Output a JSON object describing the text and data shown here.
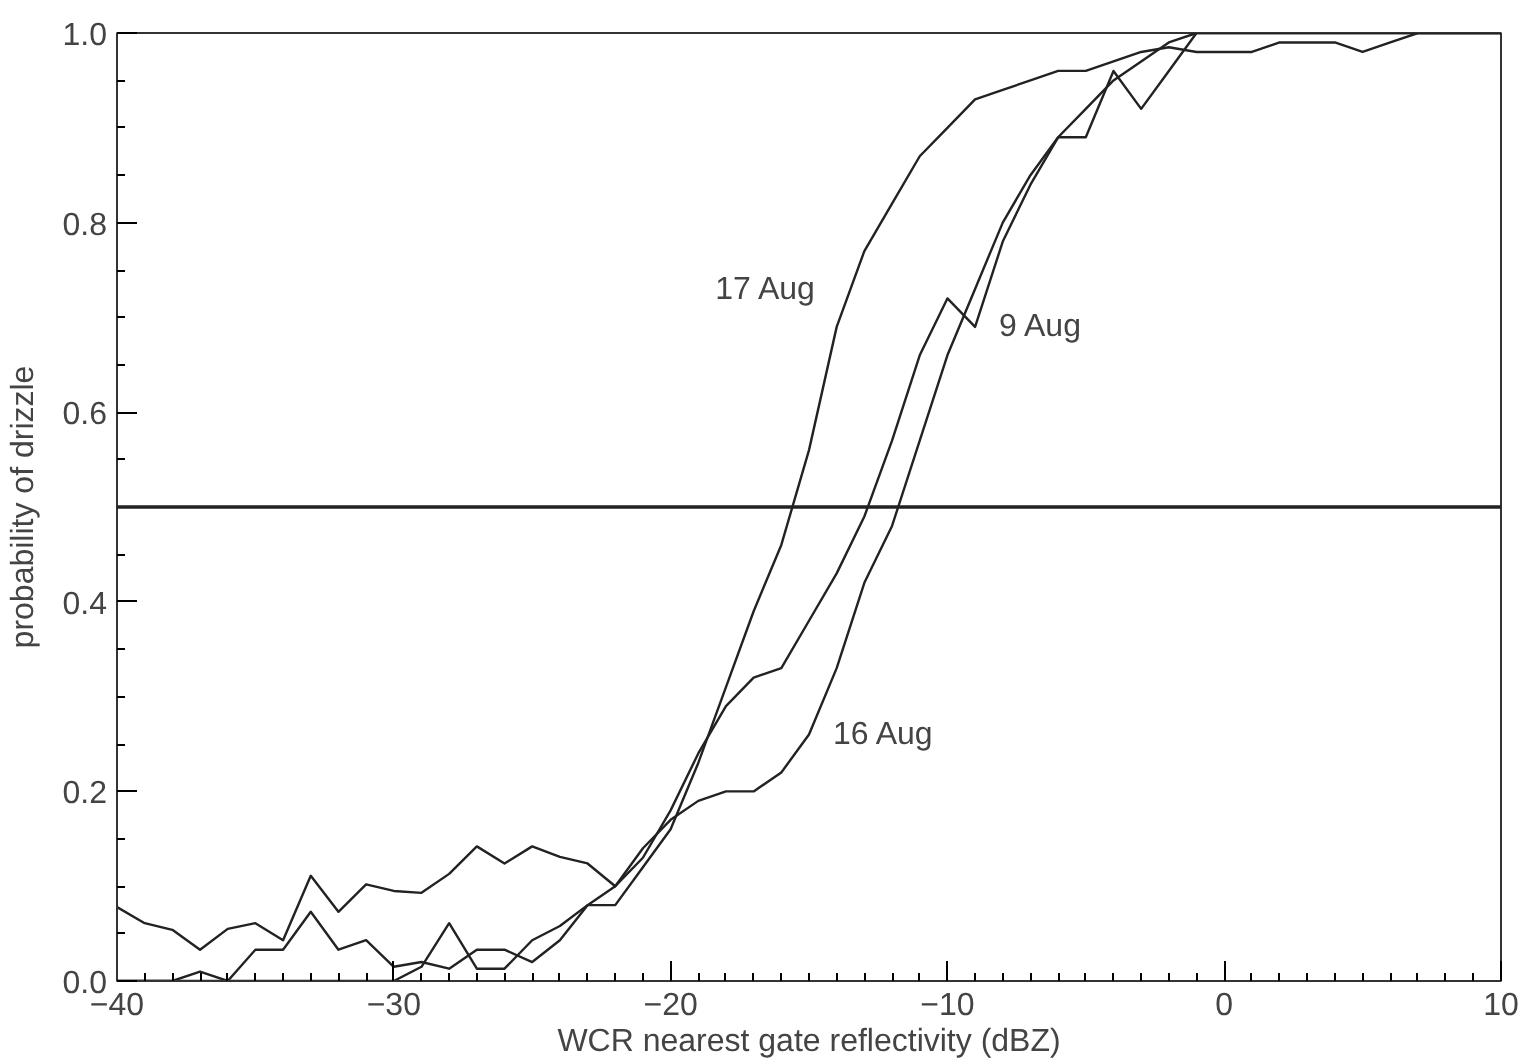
{
  "chart_data": {
    "type": "line",
    "xlabel": "WCR nearest gate reflectivity (dBZ)",
    "ylabel": "probability of drizzle",
    "xlim": [
      -40,
      10
    ],
    "xticks": [
      -40,
      -30,
      -20,
      -10,
      0,
      10
    ],
    "ylim": [
      0,
      1
    ],
    "yticks": [
      {
        "value": 0,
        "label": "0.0"
      },
      {
        "value": 0.2,
        "label": "0.2"
      },
      {
        "value": 0.4,
        "label": "0.4"
      },
      {
        "value": 0.6,
        "label": "0.6"
      },
      {
        "value": 0.8,
        "label": "0.8"
      },
      {
        "value": 1,
        "label": "1.0"
      }
    ],
    "x": [
      -40,
      -39,
      -38,
      -37,
      -36,
      -35,
      -34,
      -33,
      -32,
      -31,
      -30,
      -29,
      -28,
      -27,
      -26,
      -25,
      -24,
      -23,
      -22,
      -21,
      -20,
      -19,
      -18,
      -17,
      -16,
      -15,
      -14,
      -13,
      -12,
      -11,
      -10,
      -9,
      -8,
      -7,
      -6,
      -5,
      -4,
      -3,
      -2,
      -1,
      0,
      1,
      2,
      3,
      4,
      5,
      6,
      7,
      8,
      9,
      10
    ],
    "grid": false,
    "line_style": "solid",
    "series": [
      {
        "color": "#222222",
        "values": [
          0,
          0,
          0,
          0,
          0,
          0,
          0,
          0,
          0,
          0,
          0,
          0.015,
          0.061,
          0.013,
          0.013,
          0.043,
          0.058,
          0.08,
          0.08,
          0.12,
          0.16,
          0.23,
          0.31,
          0.39,
          0.46,
          0.56,
          0.69,
          0.77,
          0.82,
          0.87,
          0.9,
          0.93,
          0.94,
          0.95,
          0.96,
          0.96,
          0.97,
          0.98,
          0.985,
          0.98,
          0.98,
          0.98,
          0.99,
          0.99,
          0.99,
          0.98,
          0.99,
          1,
          1,
          1,
          1
        ]
      },
      {
        "color": "#222222",
        "values": [
          0,
          0,
          0,
          0.01,
          0,
          0.033,
          0.033,
          0.073,
          0.033,
          0.043,
          0.015,
          0.02,
          0.013,
          0.033,
          0.033,
          0.02,
          0.043,
          0.08,
          0.1,
          0.13,
          0.18,
          0.24,
          0.29,
          0.32,
          0.33,
          0.38,
          0.43,
          0.49,
          0.57,
          0.66,
          0.72,
          0.69,
          0.78,
          0.84,
          0.89,
          0.92,
          0.95,
          0.97,
          0.99,
          1,
          1,
          1,
          1,
          1,
          1,
          1,
          1,
          1,
          1,
          1,
          1
        ]
      },
      {
        "color": "#222222",
        "values": [
          0.078,
          0.061,
          0.054,
          0.033,
          0.055,
          0.061,
          0.043,
          0.111,
          0.073,
          0.102,
          0.095,
          0.093,
          0.113,
          0.142,
          0.124,
          0.142,
          0.131,
          0.124,
          0.1,
          0.14,
          0.17,
          0.19,
          0.2,
          0.2,
          0.22,
          0.26,
          0.33,
          0.42,
          0.48,
          0.57,
          0.66,
          0.73,
          0.8,
          0.85,
          0.89,
          0.89,
          0.96,
          0.92,
          0.96,
          1,
          1,
          1,
          1,
          1,
          1,
          1,
          1,
          1,
          1,
          1,
          1
        ]
      }
    ],
    "ref_lines": [
      {
        "axis": "y",
        "value": 0.5,
        "color": "#222222"
      }
    ],
    "annotations": [
      {
        "text": "17 Aug",
        "x": -14,
        "y": 0.69
      },
      {
        "text": "9 Aug",
        "x": -9,
        "y": 0.69
      },
      {
        "text": "16 Aug",
        "x": -15,
        "y": 0.26
      }
    ]
  }
}
